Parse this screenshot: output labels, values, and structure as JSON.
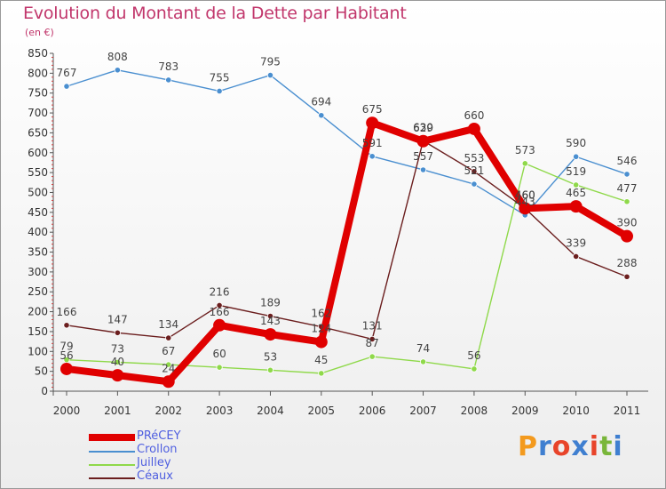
{
  "header": {
    "title": "Evolution du Montant de la Dette par Habitant",
    "subtitle": "(en €)"
  },
  "logo": {
    "text": "Proxiti",
    "colors": [
      "#f39a1e",
      "#3f7fd0",
      "#e8442a",
      "#3f7fd0",
      "#e8442a",
      "#79b63a",
      "#3f7fd0"
    ]
  },
  "chart_data": {
    "type": "line",
    "x": [
      "2000",
      "2001",
      "2002",
      "2003",
      "2004",
      "2005",
      "2006",
      "2007",
      "2008",
      "2009",
      "2010",
      "2011"
    ],
    "ylim": [
      0,
      850
    ],
    "yticks": [
      0,
      50,
      100,
      150,
      200,
      250,
      300,
      350,
      400,
      450,
      500,
      550,
      600,
      650,
      700,
      750,
      800,
      850
    ],
    "grid": false,
    "legend_position": "bottom-left",
    "series": [
      {
        "name": "PRéCEY",
        "color": "#e00000",
        "values": [
          56,
          40,
          24,
          166,
          143,
          124,
          675,
          629,
          660,
          460,
          465,
          390
        ],
        "labels": [
          "56",
          "40",
          "24",
          "166",
          "143",
          "124",
          "675",
          "629",
          "660",
          "460",
          "465",
          "390"
        ]
      },
      {
        "name": "Crollon",
        "color": "#4a8fd0",
        "values": [
          767,
          808,
          783,
          755,
          795,
          694,
          591,
          557,
          521,
          443,
          590,
          546
        ],
        "labels": [
          "767",
          "808",
          "783",
          "755",
          "795",
          "694",
          "591",
          "557",
          "521",
          "443",
          "590",
          "546"
        ]
      },
      {
        "name": "Juilley",
        "color": "#8fd94a",
        "values": [
          79,
          73,
          67,
          60,
          53,
          45,
          87,
          74,
          56,
          573,
          519,
          477
        ],
        "labels": [
          "79",
          "73",
          "67",
          "60",
          "53",
          "45",
          "87",
          "74",
          "56",
          "573",
          "519",
          "477"
        ]
      },
      {
        "name": "Céaux",
        "color": "#6b1e1e",
        "values": [
          166,
          147,
          134,
          216,
          189,
          162,
          131,
          630,
          553,
          460,
          339,
          288
        ],
        "labels": [
          "166",
          "147",
          "134",
          "216",
          "189",
          "162",
          "131",
          "630",
          "553",
          "460",
          "339",
          "288"
        ]
      }
    ]
  }
}
